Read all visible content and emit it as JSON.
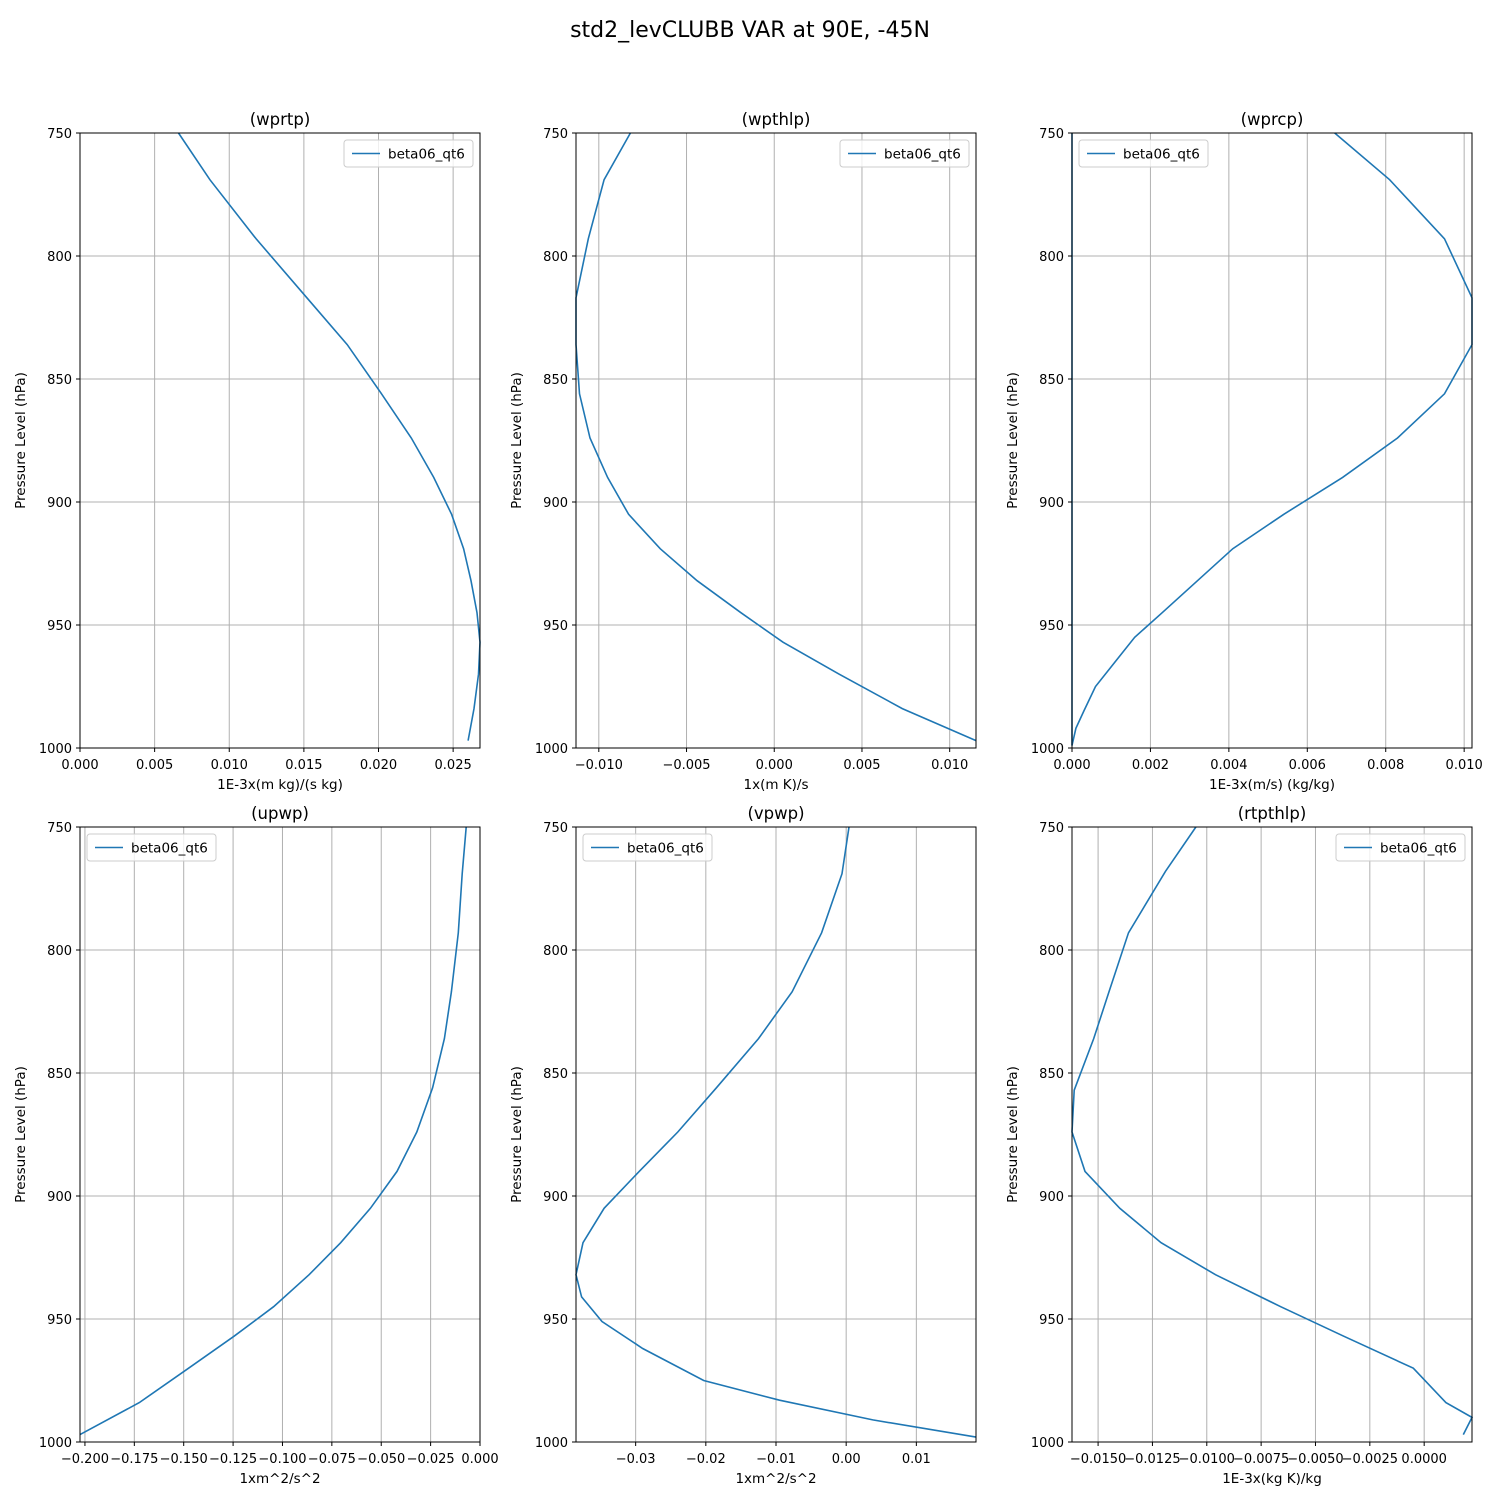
{
  "figure_title": "std2_levCLUBB VAR at 90E, -45N",
  "series_color": "#1f77b4",
  "chart_data": [
    {
      "type": "line",
      "title": "(wprtp)",
      "xlabel": "1E-3x(m kg)/(s kg)",
      "ylabel": "Pressure Level (hPa)",
      "xlim": [
        0.0,
        0.0268
      ],
      "ylim": [
        1000,
        750
      ],
      "y_inverted": true,
      "grid": true,
      "legend_position": "upper-right",
      "xticks": [
        0.0,
        0.005,
        0.01,
        0.015,
        0.02,
        0.025
      ],
      "xtick_labels": [
        "0.000",
        "0.005",
        "0.010",
        "0.015",
        "0.020",
        "0.025"
      ],
      "yticks": [
        750,
        800,
        850,
        900,
        950,
        1000
      ],
      "ytick_labels": [
        "750",
        "800",
        "850",
        "900",
        "950",
        "1000"
      ],
      "series": [
        {
          "name": "beta06_qt6",
          "x": [
            0.0066,
            0.0087,
            0.0118,
            0.0152,
            0.0179,
            0.0202,
            0.0222,
            0.0237,
            0.0249,
            0.0257,
            0.0262,
            0.0266,
            0.0268,
            0.0267,
            0.0264,
            0.026
          ],
          "y": [
            750,
            769,
            793,
            817,
            836,
            856,
            874,
            890,
            905,
            919,
            932,
            945,
            957,
            970,
            984,
            997
          ]
        }
      ]
    },
    {
      "type": "line",
      "title": "(wpthlp)",
      "xlabel": "1x(m K)/s",
      "ylabel": "Pressure Level (hPa)",
      "xlim": [
        -0.0113,
        0.0115
      ],
      "ylim": [
        1000,
        750
      ],
      "y_inverted": true,
      "grid": true,
      "legend_position": "upper-right",
      "xticks": [
        -0.01,
        -0.005,
        0.0,
        0.005,
        0.01
      ],
      "xtick_labels": [
        "−0.010",
        "−0.005",
        "0.000",
        "0.005",
        "0.010"
      ],
      "yticks": [
        750,
        800,
        850,
        900,
        950,
        1000
      ],
      "ytick_labels": [
        "750",
        "800",
        "850",
        "900",
        "950",
        "1000"
      ],
      "series": [
        {
          "name": "beta06_qt6",
          "x": [
            -0.0082,
            -0.0097,
            -0.0106,
            -0.0113,
            -0.0113,
            -0.0111,
            -0.0105,
            -0.0095,
            -0.0083,
            -0.0065,
            -0.0044,
            -0.0019,
            0.0005,
            0.0037,
            0.0073,
            0.0115
          ],
          "y": [
            750,
            769,
            793,
            817,
            836,
            856,
            874,
            890,
            905,
            919,
            932,
            945,
            957,
            970,
            984,
            997
          ]
        }
      ]
    },
    {
      "type": "line",
      "title": "(wprcp)",
      "xlabel": "1E-3x(m/s) (kg/kg)",
      "ylabel": "Pressure Level (hPa)",
      "xlim": [
        0.0,
        0.0102
      ],
      "ylim": [
        1000,
        750
      ],
      "y_inverted": true,
      "grid": true,
      "legend_position": "upper-left",
      "xticks": [
        0.0,
        0.002,
        0.004,
        0.006,
        0.008,
        0.01
      ],
      "xtick_labels": [
        "0.000",
        "0.002",
        "0.004",
        "0.006",
        "0.008",
        "0.010"
      ],
      "yticks": [
        750,
        800,
        850,
        900,
        950,
        1000
      ],
      "ytick_labels": [
        "750",
        "800",
        "850",
        "900",
        "950",
        "1000"
      ],
      "series": [
        {
          "name": "beta06_qt6",
          "x": [
            0.0,
            0.0,
            0.0,
            0.0,
            0.0,
            0.0,
            0.0,
            0.0,
            0.0,
            0.0,
            0.0,
            0.0,
            0.0,
            0.0,
            0.0,
            0.0,
            0.0,
            0.0
          ],
          "y": [
            750,
            769,
            793,
            817,
            836,
            856,
            874,
            890,
            905,
            919,
            932,
            945,
            957,
            970,
            984,
            997,
            998,
            999
          ]
        },
        {
          "name": "beta06_qt6",
          "x": [
            0.0067,
            0.0081,
            0.0095,
            0.0102,
            0.0102,
            0.0095,
            0.0083,
            0.0069,
            0.0054,
            0.0041,
            0.0032,
            0.0023,
            0.0016,
            0.0011,
            0.0006,
            0.0003,
            0.0001,
            0.0
          ],
          "y": [
            750,
            769,
            793,
            817,
            836,
            856,
            874,
            890,
            905,
            919,
            932,
            945,
            955,
            965,
            975,
            985,
            992,
            999
          ]
        }
      ]
    },
    {
      "type": "line",
      "title": "(upwp)",
      "xlabel": "1xm^2/s^2",
      "ylabel": "Pressure Level (hPa)",
      "xlim": [
        -0.2025,
        0.0
      ],
      "ylim": [
        1000,
        750
      ],
      "y_inverted": true,
      "grid": true,
      "legend_position": "upper-left",
      "xticks": [
        -0.2,
        -0.175,
        -0.15,
        -0.125,
        -0.1,
        -0.075,
        -0.05,
        -0.025,
        0.0
      ],
      "xtick_labels": [
        "−0.200",
        "−0.175",
        "−0.150",
        "−0.125",
        "−0.100",
        "−0.075",
        "−0.050",
        "−0.025",
        "0.000"
      ],
      "yticks": [
        750,
        800,
        850,
        900,
        950,
        1000
      ],
      "ytick_labels": [
        "750",
        "800",
        "850",
        "900",
        "950",
        "1000"
      ],
      "series": [
        {
          "name": "beta06_qt6",
          "x": [
            -0.007,
            -0.009,
            -0.011,
            -0.0145,
            -0.018,
            -0.024,
            -0.032,
            -0.042,
            -0.0555,
            -0.0705,
            -0.0865,
            -0.1045,
            -0.1245,
            -0.1475,
            -0.1725,
            -0.2025
          ],
          "y": [
            750,
            769,
            793,
            817,
            836,
            856,
            874,
            890,
            905,
            919,
            932,
            945,
            957,
            970,
            984,
            997
          ]
        }
      ]
    },
    {
      "type": "line",
      "title": "(vpwp)",
      "xlabel": "1xm^2/s^2",
      "ylabel": "Pressure Level (hPa)",
      "xlim": [
        -0.0385,
        0.0185
      ],
      "ylim": [
        1000,
        750
      ],
      "y_inverted": true,
      "grid": true,
      "legend_position": "upper-left",
      "xticks": [
        -0.03,
        -0.02,
        -0.01,
        0.0,
        0.01
      ],
      "xtick_labels": [
        "−0.03",
        "−0.02",
        "−0.01",
        "0.00",
        "0.01"
      ],
      "yticks": [
        750,
        800,
        850,
        900,
        950,
        1000
      ],
      "ytick_labels": [
        "750",
        "800",
        "850",
        "900",
        "950",
        "1000"
      ],
      "series": [
        {
          "name": "beta06_qt6",
          "x": [
            0.0004,
            -0.0006,
            -0.0035,
            -0.0077,
            -0.0125,
            -0.0185,
            -0.024,
            -0.0295,
            -0.0345,
            -0.0375,
            -0.0385,
            -0.0377,
            -0.0348,
            -0.029,
            -0.0203,
            -0.0095,
            0.0038,
            0.0185
          ],
          "y": [
            750,
            769,
            793,
            817,
            836,
            856,
            874,
            890,
            905,
            919,
            932,
            941,
            951,
            962,
            975,
            983,
            991,
            998
          ]
        }
      ]
    },
    {
      "type": "line",
      "title": "(rtpthlp)",
      "xlabel": "1E-3x(kg K)/kg",
      "ylabel": "Pressure Level (hPa)",
      "xlim": [
        -0.0162,
        0.0022
      ],
      "ylim": [
        1000,
        750
      ],
      "y_inverted": true,
      "grid": true,
      "legend_position": "upper-right",
      "xticks": [
        -0.015,
        -0.0125,
        -0.01,
        -0.0075,
        -0.005,
        -0.0025,
        0.0
      ],
      "xtick_labels": [
        "−0.0150",
        "−0.0125",
        "−0.0100",
        "−0.0075",
        "−0.0050",
        "−0.0025",
        "0.0000"
      ],
      "yticks": [
        750,
        800,
        850,
        900,
        950,
        1000
      ],
      "ytick_labels": [
        "750",
        "800",
        "850",
        "900",
        "950",
        "1000"
      ],
      "series": [
        {
          "name": "beta06_qt6",
          "x": [
            -0.0105,
            -0.0119,
            -0.0136,
            -0.0145,
            -0.0152,
            -0.0161,
            -0.0162,
            -0.0156,
            -0.014,
            -0.0121,
            -0.0096,
            -0.0066,
            -0.0037,
            -0.0005,
            0.001,
            0.0022,
            0.0018
          ],
          "y": [
            750,
            768,
            793,
            817,
            836,
            857,
            874,
            890,
            905,
            919,
            932,
            945,
            957,
            970,
            984,
            990,
            997
          ]
        }
      ]
    }
  ]
}
